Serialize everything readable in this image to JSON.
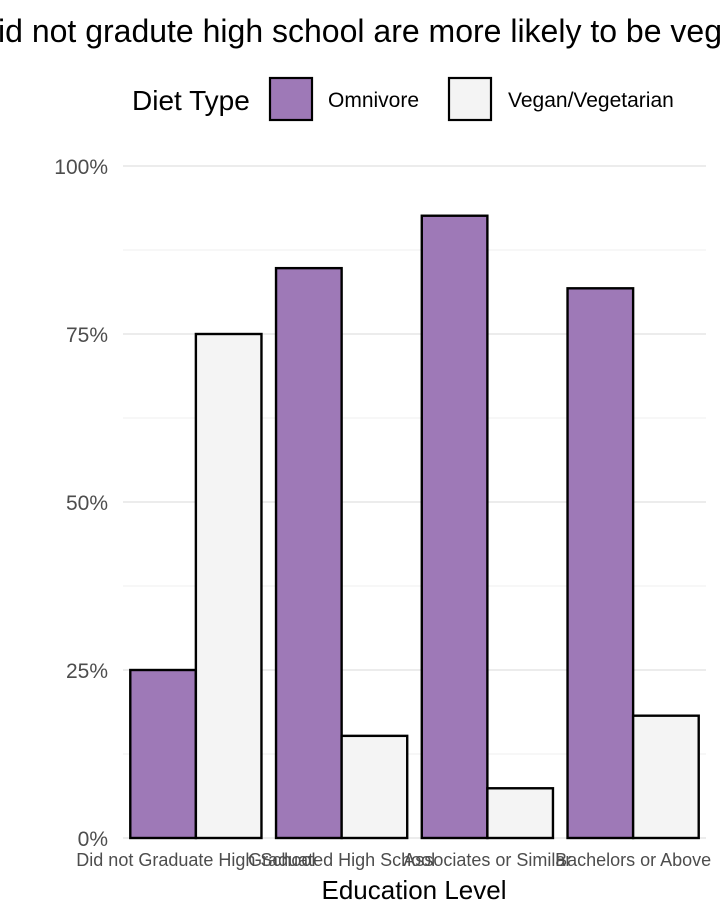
{
  "chart_data": {
    "type": "bar",
    "title": "People who did not gradute high school are more likely to be vegan/vegetarian",
    "xlabel": "Education Level",
    "ylabel": "",
    "ylim": [
      0,
      1
    ],
    "yticks": [
      "0%",
      "25%",
      "50%",
      "75%",
      "100%"
    ],
    "grid": true,
    "legend": {
      "title": "Diet Type",
      "position": "top"
    },
    "categories": [
      "Did not Graduate High School",
      "Graduated High School",
      "Associates or Similar",
      "Bachelors or Above"
    ],
    "series": [
      {
        "name": "Omnivore",
        "color": "#9e79b7",
        "values": [
          0.25,
          0.848,
          0.926,
          0.818
        ]
      },
      {
        "name": "Vegan/Vegetarian",
        "color": "#f4f4f4",
        "values": [
          0.75,
          0.152,
          0.074,
          0.182
        ]
      }
    ]
  }
}
